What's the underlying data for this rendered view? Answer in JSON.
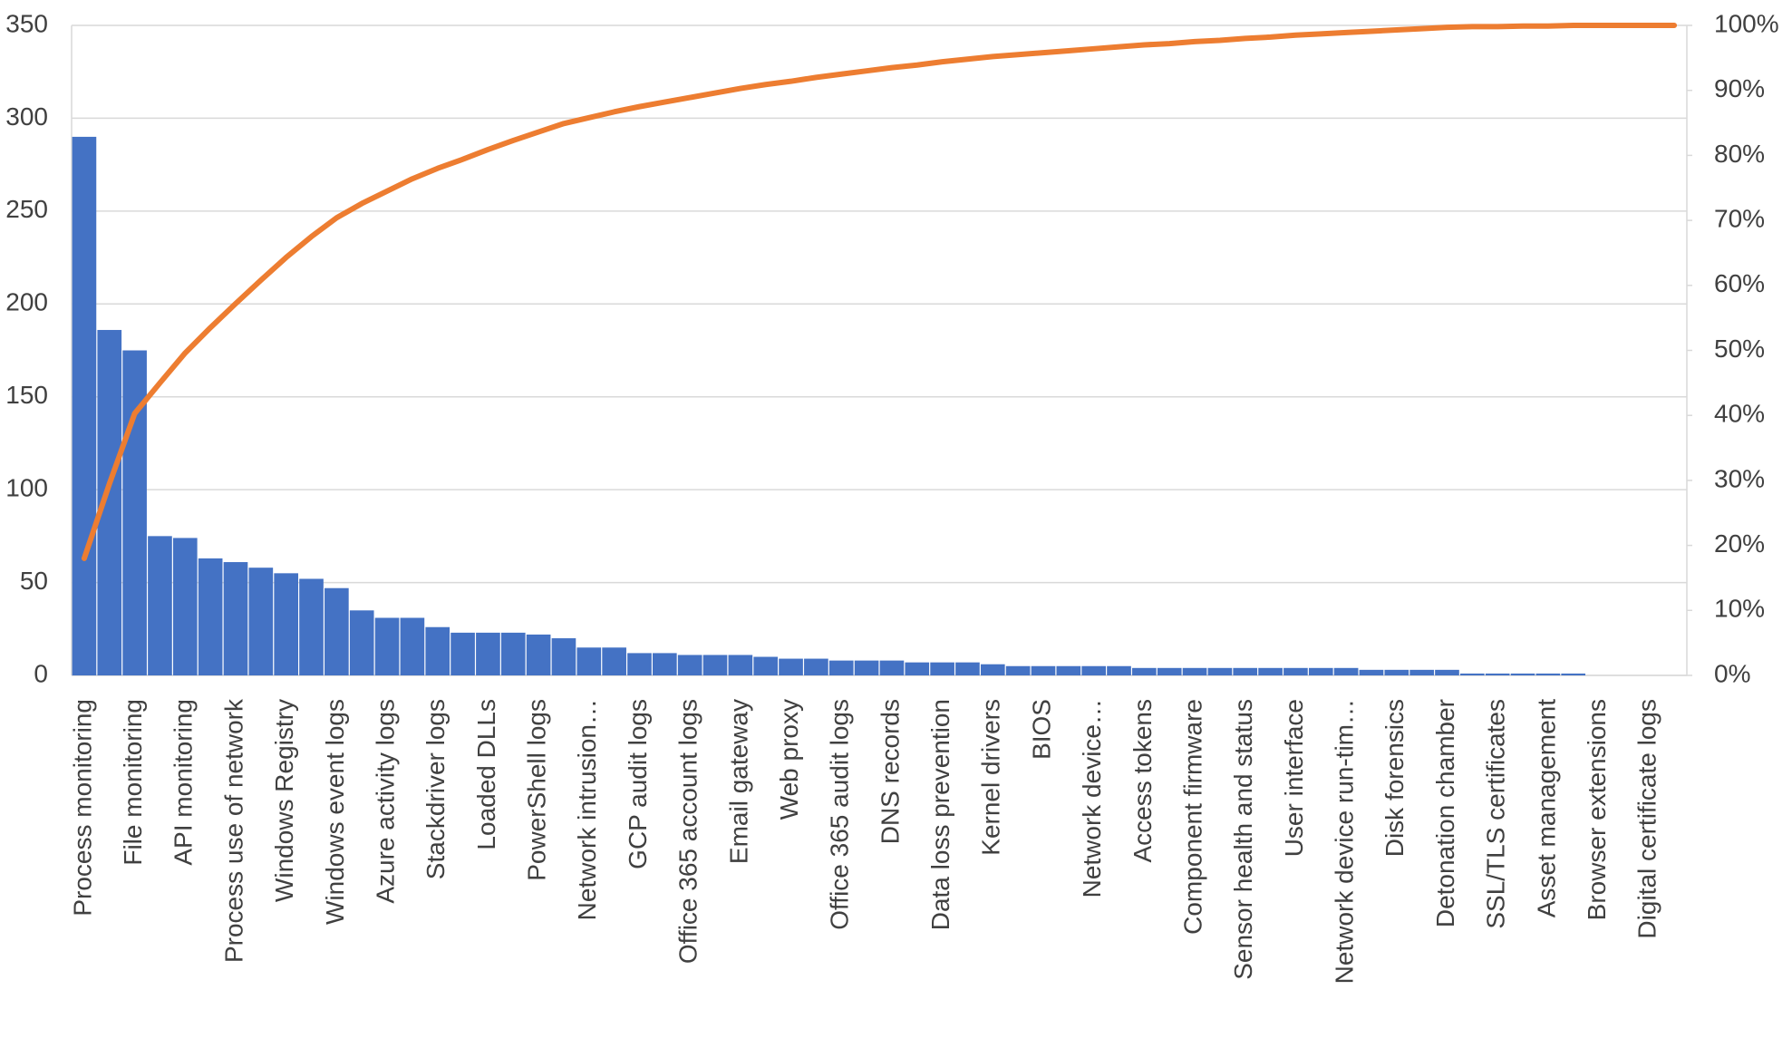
{
  "chart_data": {
    "type": "pareto",
    "categories": [
      "Process monitoring",
      null,
      "File monitoring",
      null,
      "API monitoring",
      null,
      "Process use of network",
      null,
      "Windows Registry",
      null,
      "Windows event logs",
      null,
      "Azure activity logs",
      null,
      "Stackdriver logs",
      null,
      "Loaded DLLs",
      null,
      "PowerShell logs",
      null,
      "Network intrusion…",
      null,
      "GCP audit logs",
      null,
      "Office 365 account logs",
      null,
      "Email gateway",
      null,
      "Web proxy",
      null,
      "Office 365 audit logs",
      null,
      "DNS records",
      null,
      "Data loss prevention",
      null,
      "Kernel drivers",
      null,
      "BIOS",
      null,
      "Network device…",
      null,
      "Access tokens",
      null,
      "Component firmware",
      null,
      "Sensor health and status",
      null,
      "User interface",
      null,
      "Network device run-tim…",
      null,
      "Disk forensics",
      null,
      "Detonation chamber",
      null,
      "SSL/TLS certificates",
      null,
      "Asset management",
      null,
      "Browser extensions",
      null,
      "Digital certificate logs",
      null
    ],
    "series": [
      {
        "color": "#4472c4",
        "values": [
          290,
          186,
          175,
          75,
          74,
          63,
          61,
          58,
          55,
          52,
          47,
          35,
          31,
          31,
          26,
          23,
          23,
          23,
          22,
          20,
          15,
          15,
          12,
          12,
          11,
          11,
          11,
          10,
          9,
          9,
          8,
          8,
          8,
          7,
          7,
          7,
          6,
          5,
          5,
          5,
          5,
          5,
          4,
          4,
          4,
          4,
          4,
          4,
          4,
          4,
          4,
          3,
          3,
          3,
          3,
          1,
          1,
          1,
          1,
          1,
          0,
          0,
          0,
          0
        ]
      },
      {
        "color": "#ed7d31",
        "axis": "y2",
        "values": [
          18.0,
          29.5,
          40.3,
          45.0,
          49.6,
          53.5,
          57.2,
          60.8,
          64.3,
          67.5,
          70.4,
          72.6,
          74.5,
          76.4,
          78.0,
          79.4,
          80.9,
          82.3,
          83.6,
          84.9,
          85.8,
          86.7,
          87.5,
          88.2,
          88.9,
          89.6,
          90.3,
          90.9,
          91.4,
          92.0,
          92.5,
          93.0,
          93.5,
          93.9,
          94.4,
          94.8,
          95.2,
          95.5,
          95.8,
          96.1,
          96.4,
          96.7,
          97.0,
          97.2,
          97.5,
          97.7,
          98.0,
          98.2,
          98.5,
          98.7,
          98.9,
          99.1,
          99.3,
          99.5,
          99.7,
          99.8,
          99.8,
          99.9,
          99.9,
          100,
          100,
          100,
          100,
          100
        ]
      }
    ],
    "ylim": [
      0,
      350
    ],
    "yticks": [
      0,
      50,
      100,
      150,
      200,
      250,
      300,
      350
    ],
    "y2lim": [
      0,
      100
    ],
    "y2ticks": [
      {
        "value": 0,
        "label": "0%"
      },
      {
        "value": 10,
        "label": "10%"
      },
      {
        "value": 20,
        "label": "20%"
      },
      {
        "value": 30,
        "label": "30%"
      },
      {
        "value": 40,
        "label": "40%"
      },
      {
        "value": 50,
        "label": "50%"
      },
      {
        "value": 60,
        "label": "60%"
      },
      {
        "value": 70,
        "label": "70%"
      },
      {
        "value": 80,
        "label": "80%"
      },
      {
        "value": 90,
        "label": "90%"
      },
      {
        "value": 100,
        "label": "100%"
      }
    ],
    "grid": true
  }
}
